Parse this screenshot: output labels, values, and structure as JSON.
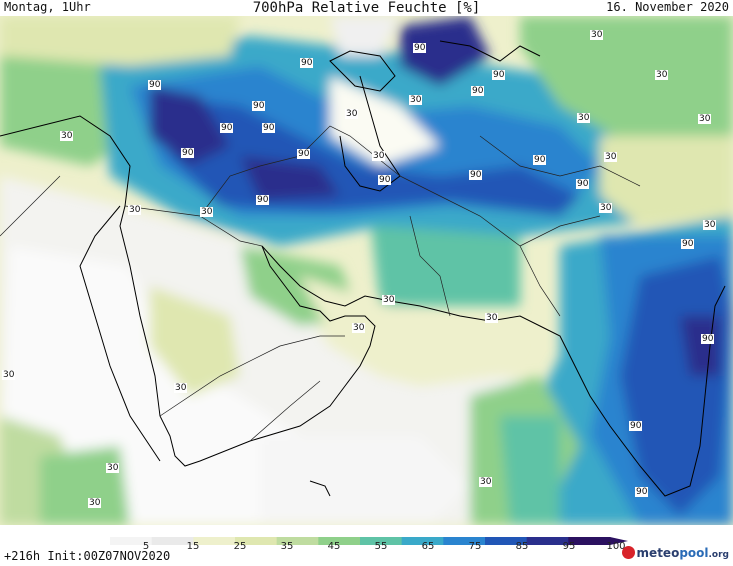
{
  "header": {
    "left": "Montag, 1Uhr",
    "title": "700hPa Relative Feuchte [%]",
    "right": "16. November 2020"
  },
  "footer": {
    "init": "+216h Init:00Z07NOV2020",
    "brand_main": "meteo",
    "brand_accent": "pool",
    "brand_tld": ".org"
  },
  "colorbar": {
    "ticks": [
      "5",
      "15",
      "25",
      "35",
      "45",
      "55",
      "65",
      "75",
      "85",
      "95",
      "100"
    ],
    "colors": [
      "#f4f4f4",
      "#eaeaea",
      "#eef0cc",
      "#dfe7b0",
      "#bfdca0",
      "#8fd08a",
      "#5fc3a6",
      "#3aa9c9",
      "#2a84cf",
      "#2156b6",
      "#2a2f8c",
      "#2b1160"
    ]
  },
  "contour_labels": [
    "90",
    "90",
    "90",
    "90",
    "90",
    "90",
    "90",
    "90",
    "90",
    "90",
    "90",
    "90",
    "90",
    "90",
    "90",
    "90",
    "90",
    "90",
    "90",
    "30",
    "30",
    "30",
    "30",
    "30",
    "30",
    "30",
    "30",
    "30",
    "30",
    "30",
    "30",
    "30",
    "30",
    "30",
    "30",
    "30",
    "30",
    "30",
    "30",
    "30"
  ]
}
